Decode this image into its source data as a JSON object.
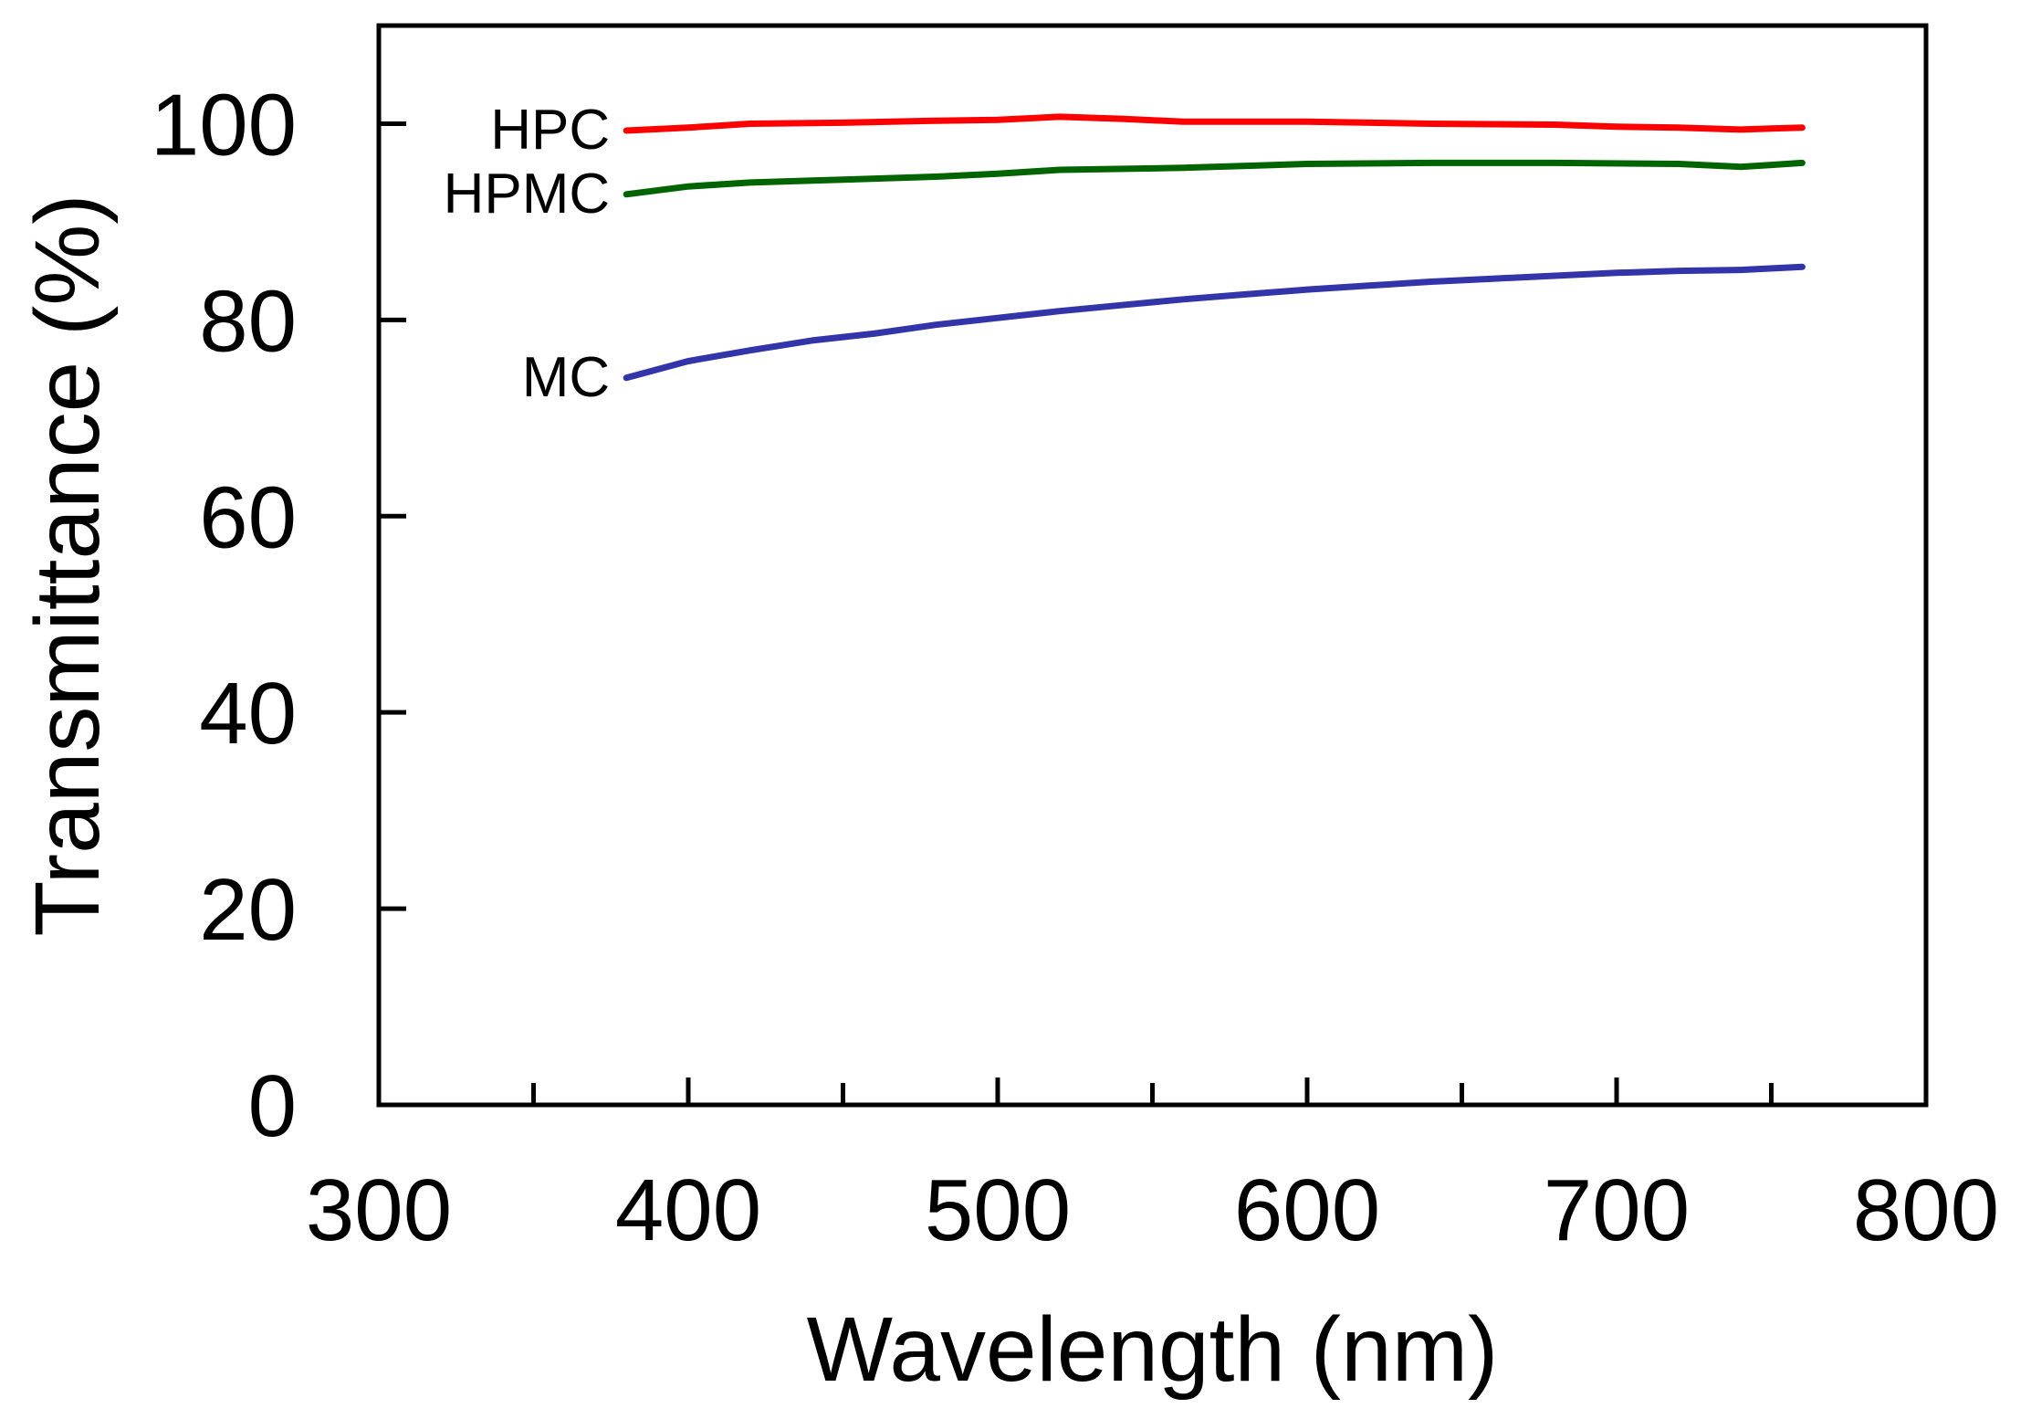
{
  "chart_data": {
    "type": "line",
    "title": "",
    "xlabel": "Wavelength (nm)",
    "ylabel": "Transmittance (%)",
    "xlim": [
      300,
      800
    ],
    "ylim": [
      0,
      110
    ],
    "x_ticks": [
      300,
      400,
      500,
      600,
      700,
      800
    ],
    "x_minor_ticks": [
      350,
      450,
      550,
      650,
      750
    ],
    "y_ticks": [
      0,
      20,
      40,
      60,
      80,
      100
    ],
    "grid": false,
    "legend": "none",
    "series": [
      {
        "name": "HPC",
        "color": "#ff0000",
        "x": [
          380,
          400,
          420,
          450,
          480,
          500,
          520,
          540,
          560,
          600,
          640,
          680,
          700,
          720,
          740,
          750,
          760
        ],
        "values": [
          99.3,
          99.6,
          100.0,
          100.1,
          100.3,
          100.4,
          100.7,
          100.5,
          100.2,
          100.2,
          100.0,
          99.9,
          99.7,
          99.6,
          99.4,
          99.5,
          99.6
        ]
      },
      {
        "name": "HPMC",
        "color": "#006400",
        "x": [
          380,
          400,
          420,
          450,
          480,
          500,
          520,
          560,
          600,
          640,
          680,
          720,
          740,
          750,
          760
        ],
        "values": [
          92.8,
          93.6,
          94.0,
          94.3,
          94.6,
          94.9,
          95.3,
          95.5,
          95.9,
          96.0,
          96.0,
          95.9,
          95.6,
          95.8,
          96.0
        ]
      },
      {
        "name": "MC",
        "color": "#3333aa",
        "x": [
          380,
          400,
          420,
          440,
          460,
          480,
          500,
          520,
          540,
          560,
          580,
          600,
          620,
          640,
          660,
          680,
          700,
          720,
          740,
          760
        ],
        "values": [
          74.1,
          75.8,
          76.9,
          77.9,
          78.6,
          79.5,
          80.2,
          80.9,
          81.5,
          82.1,
          82.6,
          83.1,
          83.5,
          83.9,
          84.2,
          84.5,
          84.8,
          85.0,
          85.1,
          85.4
        ]
      }
    ],
    "annotations": [
      "HPC",
      "HPMC",
      "MC"
    ]
  }
}
